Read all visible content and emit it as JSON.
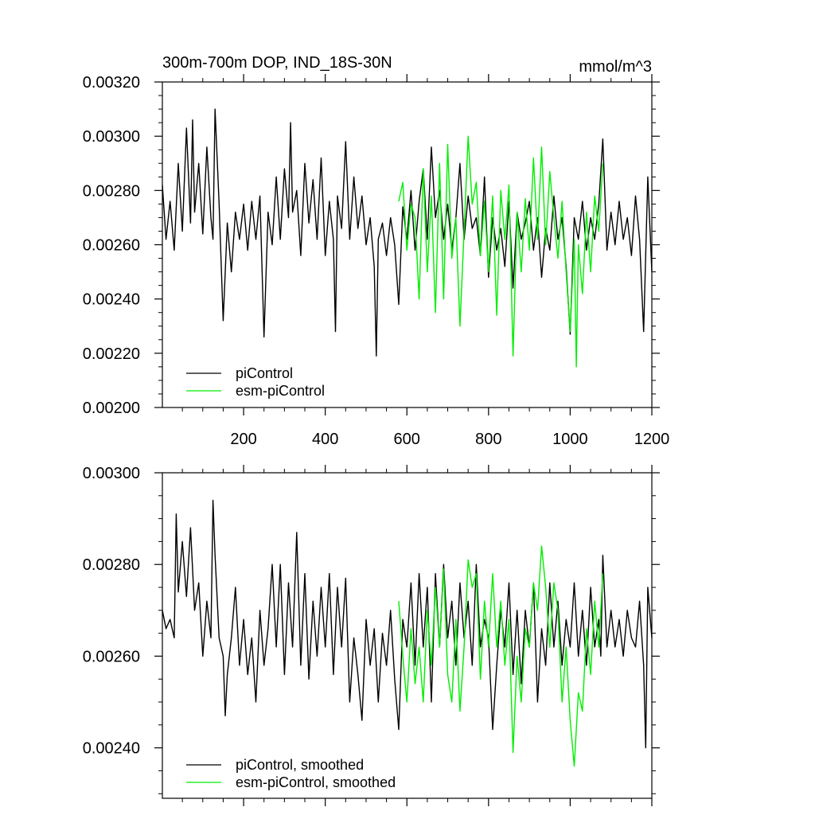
{
  "colors": {
    "piControl": "#000000",
    "esm_piControl": "#00ee00",
    "frame": "#000000",
    "background": "#ffffff"
  },
  "chart_data": [
    {
      "type": "line",
      "title": "300m-700m DOP, IND_18S-30N",
      "units": "mmol/m^3",
      "xlabel": "",
      "ylabel": "",
      "xlim": [
        1,
        1200
      ],
      "ylim": [
        0.002,
        0.0032
      ],
      "x_ticks": [
        200,
        400,
        600,
        800,
        1000,
        1200
      ],
      "x_tick_labels": [
        "200",
        "400",
        "600",
        "800",
        "1000",
        "1200"
      ],
      "y_ticks": [
        0.002,
        0.0022,
        0.0024,
        0.0026,
        0.0028,
        0.003,
        0.0032
      ],
      "y_tick_labels": [
        "0.00200",
        "0.00220",
        "0.00240",
        "0.00260",
        "0.00280",
        "0.00300",
        "0.00320"
      ],
      "grid": false,
      "legend_position": "bottom-left",
      "series": [
        {
          "name": "piControl",
          "color": "#000000",
          "x": [
            1,
            10,
            20,
            30,
            40,
            50,
            60,
            70,
            75,
            80,
            90,
            100,
            110,
            120,
            125,
            130,
            140,
            150,
            160,
            170,
            180,
            190,
            200,
            210,
            220,
            230,
            240,
            250,
            260,
            270,
            280,
            290,
            300,
            310,
            315,
            320,
            330,
            340,
            350,
            360,
            370,
            380,
            390,
            400,
            410,
            420,
            425,
            430,
            440,
            450,
            460,
            470,
            480,
            490,
            500,
            510,
            520,
            525,
            530,
            540,
            550,
            560,
            570,
            580,
            590,
            600,
            610,
            620,
            630,
            640,
            650,
            660,
            670,
            680,
            690,
            700,
            710,
            720,
            730,
            740,
            750,
            760,
            770,
            780,
            790,
            800,
            810,
            820,
            830,
            840,
            850,
            860,
            870,
            880,
            890,
            900,
            910,
            920,
            930,
            940,
            950,
            960,
            970,
            980,
            990,
            1000,
            1010,
            1020,
            1030,
            1040,
            1050,
            1060,
            1070,
            1080,
            1090,
            1100,
            1110,
            1120,
            1130,
            1140,
            1150,
            1160,
            1170,
            1180,
            1190,
            1200
          ],
          "values": [
            0.00282,
            0.00262,
            0.00276,
            0.00258,
            0.0029,
            0.00265,
            0.00303,
            0.00268,
            0.00306,
            0.00272,
            0.0029,
            0.00264,
            0.00296,
            0.0027,
            0.00262,
            0.0031,
            0.00275,
            0.00232,
            0.00268,
            0.0025,
            0.00272,
            0.00262,
            0.00275,
            0.00258,
            0.00276,
            0.00262,
            0.00278,
            0.00226,
            0.00272,
            0.0026,
            0.00285,
            0.00262,
            0.00288,
            0.0027,
            0.00305,
            0.00272,
            0.0028,
            0.00256,
            0.0029,
            0.00268,
            0.00284,
            0.00262,
            0.00292,
            0.00256,
            0.00276,
            0.00262,
            0.00228,
            0.00278,
            0.00266,
            0.00298,
            0.00262,
            0.00285,
            0.00266,
            0.00278,
            0.0026,
            0.0027,
            0.00252,
            0.00219,
            0.00262,
            0.00268,
            0.00256,
            0.0027,
            0.0026,
            0.00238,
            0.00274,
            0.00262,
            0.0028,
            0.00258,
            0.00276,
            0.00288,
            0.00262,
            0.00296,
            0.0027,
            0.0028,
            0.00262,
            0.00275,
            0.00258,
            0.0027,
            0.0029,
            0.00262,
            0.00278,
            0.00266,
            0.0027,
            0.00256,
            0.00285,
            0.00248,
            0.0027,
            0.00258,
            0.00266,
            0.00252,
            0.00276,
            0.00244,
            0.00272,
            0.00262,
            0.00268,
            0.00276,
            0.00258,
            0.0027,
            0.00248,
            0.00266,
            0.00258,
            0.00278,
            0.00262,
            0.0027,
            0.00252,
            0.00227,
            0.0027,
            0.00262,
            0.00276,
            0.00258,
            0.0027,
            0.00262,
            0.00275,
            0.00299,
            0.00258,
            0.00272,
            0.0026,
            0.00276,
            0.00262,
            0.0027,
            0.00256,
            0.00278,
            0.00262,
            0.00228,
            0.00285,
            0.0025
          ]
        },
        {
          "name": "esm-piControl",
          "color": "#00ee00",
          "x": [
            580,
            590,
            600,
            610,
            620,
            630,
            640,
            650,
            660,
            670,
            680,
            690,
            700,
            710,
            720,
            730,
            740,
            750,
            760,
            770,
            780,
            790,
            800,
            810,
            820,
            830,
            840,
            850,
            860,
            870,
            880,
            890,
            900,
            910,
            920,
            930,
            940,
            950,
            960,
            970,
            980,
            990,
            1000,
            1010,
            1015,
            1020,
            1030,
            1040,
            1050,
            1060,
            1070,
            1080
          ],
          "values": [
            0.00276,
            0.00283,
            0.00258,
            0.00275,
            0.0027,
            0.0024,
            0.00288,
            0.0025,
            0.00278,
            0.00235,
            0.0029,
            0.0024,
            0.00297,
            0.00255,
            0.0027,
            0.0023,
            0.00265,
            0.003,
            0.00275,
            0.00283,
            0.00256,
            0.00276,
            0.0025,
            0.00278,
            0.00234,
            0.0028,
            0.00262,
            0.00282,
            0.00219,
            0.00272,
            0.0025,
            0.00277,
            0.00258,
            0.00292,
            0.00262,
            0.00296,
            0.0026,
            0.00287,
            0.0027,
            0.00255,
            0.00276,
            0.0025,
            0.00228,
            0.00262,
            0.00215,
            0.0026,
            0.00242,
            0.00272,
            0.0025,
            0.00278,
            0.00265,
            0.0029
          ]
        }
      ]
    },
    {
      "type": "line",
      "title": "",
      "units": "",
      "xlabel": "",
      "ylabel": "",
      "xlim": [
        1,
        1200
      ],
      "ylim": [
        0.00229,
        0.003
      ],
      "x_ticks": [
        200,
        400,
        600,
        800,
        1000,
        1200
      ],
      "x_tick_labels": [],
      "y_ticks": [
        0.0024,
        0.0026,
        0.0028,
        0.003
      ],
      "y_tick_labels": [
        "0.00240",
        "0.00260",
        "0.00280",
        "0.00300"
      ],
      "grid": false,
      "legend_position": "bottom-left",
      "series": [
        {
          "name": "piControl, smoothed",
          "color": "#000000",
          "x": [
            1,
            10,
            20,
            30,
            35,
            40,
            50,
            60,
            70,
            80,
            90,
            100,
            110,
            120,
            125,
            130,
            140,
            150,
            155,
            160,
            170,
            180,
            190,
            200,
            210,
            220,
            230,
            240,
            250,
            260,
            270,
            280,
            290,
            300,
            310,
            320,
            330,
            340,
            350,
            360,
            370,
            380,
            390,
            400,
            410,
            420,
            430,
            440,
            450,
            460,
            470,
            480,
            490,
            500,
            510,
            520,
            530,
            540,
            550,
            560,
            570,
            580,
            590,
            600,
            610,
            620,
            630,
            640,
            650,
            660,
            670,
            680,
            690,
            700,
            710,
            720,
            730,
            740,
            750,
            760,
            770,
            780,
            790,
            800,
            810,
            820,
            830,
            840,
            850,
            860,
            870,
            880,
            890,
            900,
            910,
            920,
            930,
            940,
            950,
            960,
            970,
            980,
            990,
            1000,
            1010,
            1020,
            1030,
            1040,
            1050,
            1060,
            1070,
            1075,
            1080,
            1090,
            1100,
            1110,
            1120,
            1130,
            1140,
            1150,
            1160,
            1170,
            1180,
            1185,
            1190,
            1200
          ],
          "values": [
            0.0027,
            0.00266,
            0.00268,
            0.00264,
            0.00291,
            0.00274,
            0.00285,
            0.00273,
            0.00288,
            0.0027,
            0.00276,
            0.0026,
            0.00272,
            0.00264,
            0.00294,
            0.00282,
            0.00264,
            0.0026,
            0.00247,
            0.00256,
            0.00264,
            0.00275,
            0.00258,
            0.00268,
            0.00256,
            0.00264,
            0.0025,
            0.0027,
            0.00258,
            0.00266,
            0.0028,
            0.00262,
            0.0028,
            0.00256,
            0.00276,
            0.00262,
            0.00287,
            0.00258,
            0.00278,
            0.00255,
            0.00272,
            0.0026,
            0.00275,
            0.00262,
            0.00278,
            0.00256,
            0.00275,
            0.00262,
            0.00277,
            0.0025,
            0.00264,
            0.00256,
            0.00246,
            0.00268,
            0.00258,
            0.00266,
            0.0025,
            0.00265,
            0.00258,
            0.0027,
            0.00255,
            0.00244,
            0.00268,
            0.00262,
            0.00276,
            0.00258,
            0.00278,
            0.00262,
            0.00275,
            0.0025,
            0.00278,
            0.00262,
            0.0028,
            0.00264,
            0.00272,
            0.00258,
            0.00276,
            0.00264,
            0.00272,
            0.00258,
            0.0028,
            0.00262,
            0.00268,
            0.00264,
            0.00244,
            0.00258,
            0.0027,
            0.00262,
            0.00276,
            0.00256,
            0.0027,
            0.00254,
            0.0027,
            0.00262,
            0.00276,
            0.0025,
            0.00266,
            0.00258,
            0.00276,
            0.00262,
            0.00272,
            0.00258,
            0.00268,
            0.00262,
            0.00276,
            0.0026,
            0.0027,
            0.00258,
            0.00275,
            0.00262,
            0.00268,
            0.0026,
            0.00282,
            0.00262,
            0.0027,
            0.00262,
            0.00268,
            0.0026,
            0.0027,
            0.00264,
            0.00262,
            0.00272,
            0.00258,
            0.0024,
            0.00275,
            0.00264
          ]
        },
        {
          "name": "esm-piControl, smoothed",
          "color": "#00ee00",
          "x": [
            580,
            590,
            600,
            610,
            620,
            630,
            640,
            650,
            660,
            670,
            680,
            690,
            700,
            710,
            720,
            730,
            740,
            750,
            760,
            770,
            780,
            790,
            800,
            810,
            820,
            830,
            840,
            850,
            860,
            870,
            880,
            890,
            900,
            910,
            920,
            930,
            940,
            950,
            960,
            970,
            980,
            990,
            1000,
            1010,
            1020,
            1030,
            1040,
            1050,
            1060,
            1070,
            1080
          ],
          "values": [
            0.00272,
            0.0026,
            0.0025,
            0.00266,
            0.00254,
            0.00262,
            0.0025,
            0.0027,
            0.00258,
            0.00275,
            0.00262,
            0.00279,
            0.00256,
            0.0025,
            0.00268,
            0.00248,
            0.00262,
            0.00281,
            0.00275,
            0.00278,
            0.00255,
            0.00272,
            0.00262,
            0.00278,
            0.00262,
            0.00272,
            0.00258,
            0.00268,
            0.00239,
            0.0026,
            0.0025,
            0.00266,
            0.00262,
            0.00276,
            0.0027,
            0.00284,
            0.00275,
            0.00262,
            0.00276,
            0.0027,
            0.0025,
            0.00262,
            0.00246,
            0.00236,
            0.00252,
            0.00248,
            0.00266,
            0.00256,
            0.00272,
            0.00262,
            0.00278
          ]
        }
      ]
    }
  ]
}
